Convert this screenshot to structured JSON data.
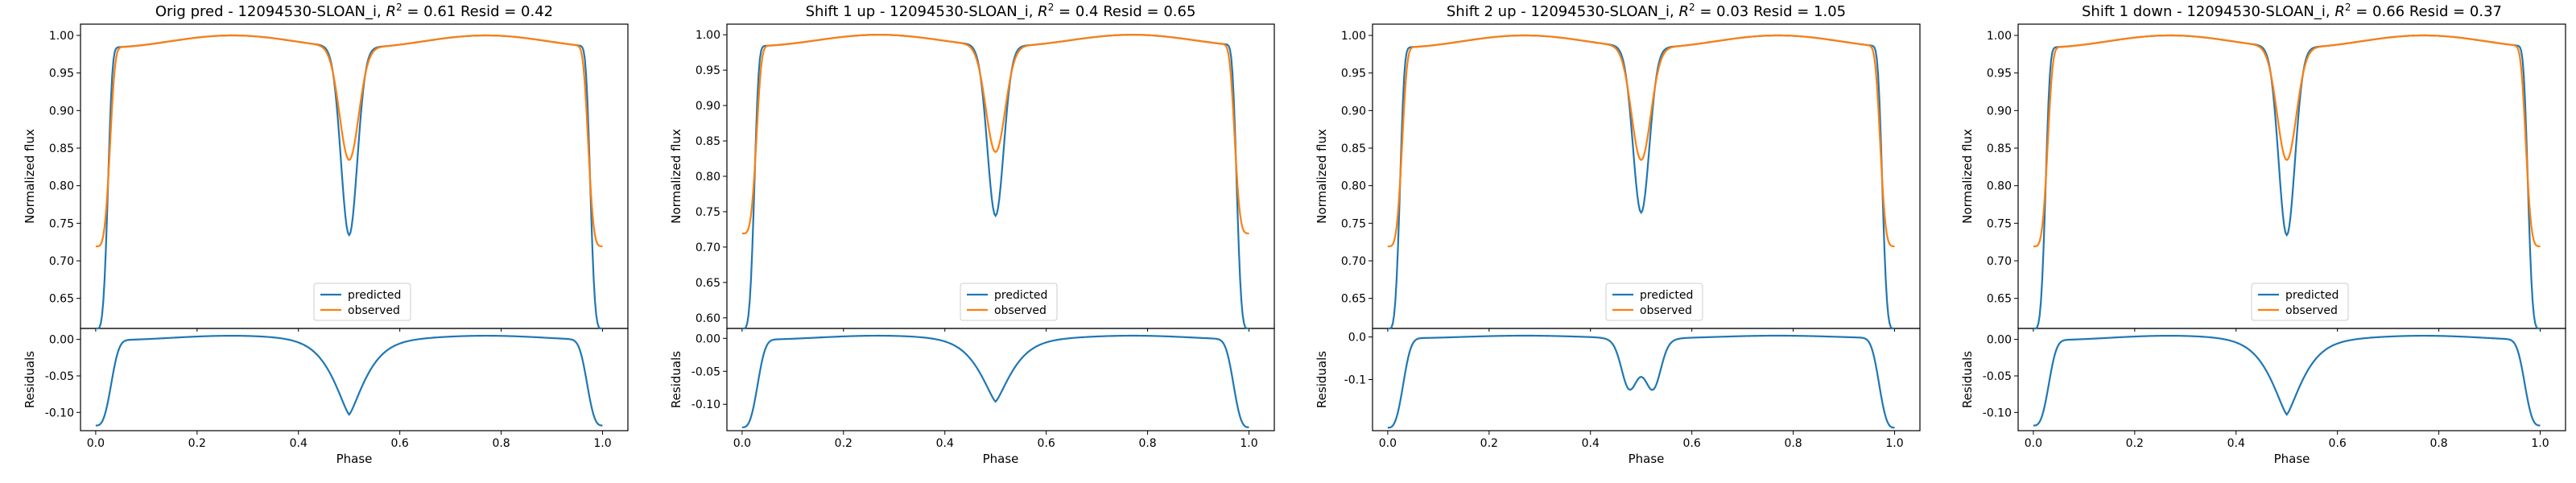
{
  "chart_data": [
    {
      "type": "line",
      "title_prefix": "Orig pred - 12094530-SLOAN_i, ",
      "r2": "0.61",
      "resid": "0.42",
      "ylabel": "Normalized flux",
      "ylabel_resid": "Residuals",
      "xlabel": "Phase",
      "xlim": [
        -0.03,
        1.05
      ],
      "ylim": [
        0.61,
        1.015
      ],
      "ylim_resid": [
        -0.125,
        0.015
      ],
      "xticks": [
        "0.0",
        "0.2",
        "0.4",
        "0.6",
        "0.8",
        "1.0"
      ],
      "yticks": [
        "0.65",
        "0.70",
        "0.75",
        "0.80",
        "0.85",
        "0.90",
        "0.95",
        "1.00"
      ],
      "yticks_resid": [
        "0.00",
        "-0.05",
        "-0.10"
      ],
      "legend_position": "lower center",
      "series": [
        {
          "name": "predicted",
          "color": "#1f77b4",
          "depth_edge": 0.375,
          "depth_mid": 0.25,
          "width": 0.012
        },
        {
          "name": "observed",
          "color": "#ff7f0e",
          "depth_edge": 0.265,
          "depth_mid": 0.15,
          "width": 0.014
        }
      ],
      "residual_curve": {
        "color": "#1f77b4",
        "edge_min": -0.115,
        "mid_min": -0.1,
        "flat": 0.002
      }
    },
    {
      "type": "line",
      "title_prefix": "Shift 1 up - 12094530-SLOAN_i, ",
      "r2": "0.4",
      "resid": "0.65",
      "ylabel": "Normalized flux",
      "ylabel_resid": "Residuals",
      "xlabel": "Phase",
      "xlim": [
        -0.03,
        1.05
      ],
      "ylim": [
        0.585,
        1.015
      ],
      "ylim_resid": [
        -0.14,
        0.015
      ],
      "xticks": [
        "0.0",
        "0.2",
        "0.4",
        "0.6",
        "0.8",
        "1.0"
      ],
      "yticks": [
        "0.60",
        "0.65",
        "0.70",
        "0.75",
        "0.80",
        "0.85",
        "0.90",
        "0.95",
        "1.00"
      ],
      "yticks_resid": [
        "0.00",
        "-0.05",
        "-0.10"
      ],
      "legend_position": "lower center",
      "series": [
        {
          "name": "predicted",
          "color": "#1f77b4",
          "depth_edge": 0.4,
          "depth_mid": 0.24,
          "width": 0.012
        },
        {
          "name": "observed",
          "color": "#ff7f0e",
          "depth_edge": 0.265,
          "depth_mid": 0.15,
          "width": 0.014
        }
      ],
      "residual_curve": {
        "color": "#1f77b4",
        "edge_min": -0.132,
        "mid_min": -0.093,
        "flat": 0.001
      }
    },
    {
      "type": "line",
      "title_prefix": "Shift 2 up - 12094530-SLOAN_i, ",
      "r2": "0.03",
      "resid": "1.05",
      "ylabel": "Normalized flux",
      "ylabel_resid": "Residuals",
      "xlabel": "Phase",
      "xlim": [
        -0.03,
        1.05
      ],
      "ylim": [
        0.61,
        1.015
      ],
      "ylim_resid": [
        -0.22,
        0.02
      ],
      "xticks": [
        "0.0",
        "0.2",
        "0.4",
        "0.6",
        "0.8",
        "1.0"
      ],
      "yticks": [
        "0.65",
        "0.70",
        "0.75",
        "0.80",
        "0.85",
        "0.90",
        "0.95",
        "1.00"
      ],
      "yticks_resid": [
        "0.0",
        "-0.1"
      ],
      "legend_position": "lower center",
      "series": [
        {
          "name": "predicted",
          "color": "#1f77b4",
          "depth_edge": 0.375,
          "depth_mid": 0.22,
          "width": 0.012
        },
        {
          "name": "observed",
          "color": "#ff7f0e",
          "depth_edge": 0.265,
          "depth_mid": 0.15,
          "width": 0.014
        }
      ],
      "residual_curve": {
        "color": "#1f77b4",
        "edge_min": -0.21,
        "mid_min": -0.095,
        "flat": 0.0
      }
    },
    {
      "type": "line",
      "title_prefix": "Shift 1 down - 12094530-SLOAN_i, ",
      "r2": "0.66",
      "resid": "0.37",
      "ylabel": "Normalized flux",
      "ylabel_resid": "Residuals",
      "xlabel": "Phase",
      "xlim": [
        -0.03,
        1.05
      ],
      "ylim": [
        0.61,
        1.015
      ],
      "ylim_resid": [
        -0.125,
        0.015
      ],
      "xticks": [
        "0.0",
        "0.2",
        "0.4",
        "0.6",
        "0.8",
        "1.0"
      ],
      "yticks": [
        "0.65",
        "0.70",
        "0.75",
        "0.80",
        "0.85",
        "0.90",
        "0.95",
        "1.00"
      ],
      "yticks_resid": [
        "0.00",
        "-0.05",
        "-0.10"
      ],
      "legend_position": "lower center",
      "series": [
        {
          "name": "predicted",
          "color": "#1f77b4",
          "depth_edge": 0.375,
          "depth_mid": 0.25,
          "width": 0.012
        },
        {
          "name": "observed",
          "color": "#ff7f0e",
          "depth_edge": 0.265,
          "depth_mid": 0.15,
          "width": 0.014
        }
      ],
      "residual_curve": {
        "color": "#1f77b4",
        "edge_min": -0.115,
        "mid_min": -0.1,
        "flat": 0.002
      }
    }
  ]
}
